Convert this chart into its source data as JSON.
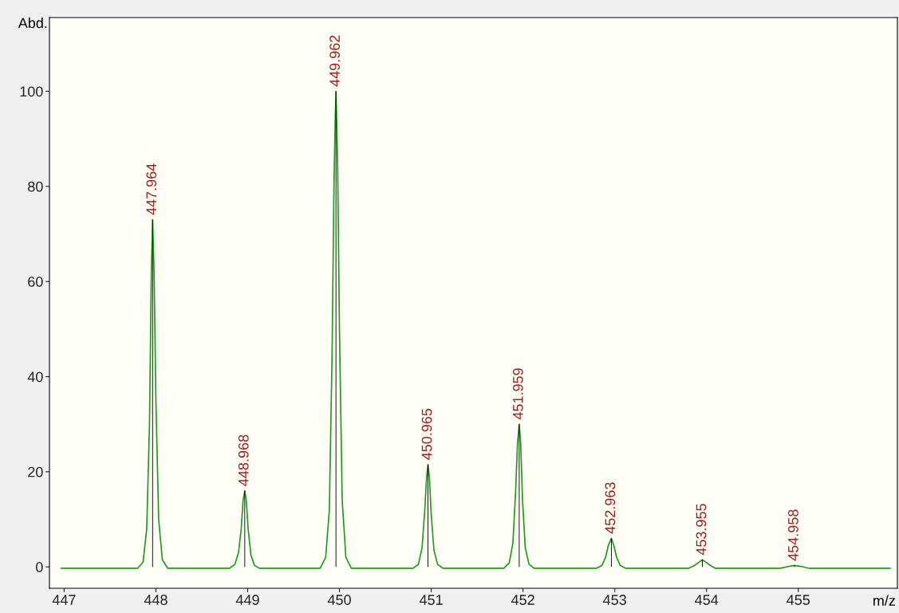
{
  "chart_data": {
    "type": "line",
    "ylabel": "Abd.",
    "xlabel": "m/z",
    "xlim": [
      446.84,
      456.08
    ],
    "ylim": [
      -4.5,
      115.5
    ],
    "xticks": [
      447,
      448,
      449,
      450,
      451,
      452,
      453,
      454,
      455
    ],
    "yticks": [
      0,
      20,
      40,
      60,
      80,
      100
    ],
    "grid": false,
    "legend": false,
    "series": [
      {
        "color": "#1e9a1e",
        "x": [
          446.97,
          447.8,
          447.86,
          447.9,
          447.93,
          447.95,
          447.964,
          447.98,
          448.0,
          448.03,
          448.07,
          448.13,
          448.8,
          448.86,
          448.9,
          448.93,
          448.95,
          448.968,
          448.985,
          449.005,
          449.035,
          449.075,
          449.13,
          449.79,
          449.85,
          449.89,
          449.92,
          449.94,
          449.955,
          449.962,
          449.98,
          450.0,
          450.03,
          450.07,
          450.13,
          450.8,
          450.86,
          450.9,
          450.93,
          450.95,
          450.965,
          450.98,
          451.0,
          451.03,
          451.07,
          451.13,
          451.79,
          451.85,
          451.89,
          451.92,
          451.94,
          451.959,
          451.975,
          451.995,
          452.025,
          452.065,
          452.12,
          452.8,
          452.86,
          452.9,
          452.93,
          452.963,
          452.99,
          453.02,
          453.06,
          453.12,
          453.8,
          453.86,
          453.92,
          453.955,
          453.99,
          454.05,
          454.1,
          454.8,
          454.9,
          454.958,
          455.03,
          455.12,
          456.0
        ],
        "values": [
          -0.3,
          -0.3,
          1,
          8,
          30,
          62,
          73,
          62,
          35,
          10,
          1.5,
          -0.3,
          -0.3,
          0.5,
          3,
          8,
          14,
          16,
          14,
          8,
          2.5,
          0.3,
          -0.3,
          -0.3,
          2,
          12,
          45,
          80,
          95,
          100,
          85,
          50,
          14,
          2,
          -0.3,
          -0.3,
          0.5,
          4,
          12,
          19,
          21.5,
          19,
          11,
          3.5,
          0.5,
          -0.3,
          -0.3,
          0.8,
          5,
          16,
          26,
          30,
          26,
          14,
          4,
          0.6,
          -0.3,
          -0.3,
          0.3,
          2,
          4.5,
          6,
          4.5,
          2,
          0.3,
          -0.3,
          -0.3,
          0.2,
          1,
          1.5,
          1,
          0.2,
          -0.3,
          -0.3,
          0.1,
          0.3,
          0.1,
          -0.3,
          -0.3
        ]
      },
      {
        "type": "bar",
        "color": "#000000",
        "x": [
          447.964,
          448.968,
          449.962,
          450.965,
          451.959,
          452.963,
          453.955,
          454.958
        ],
        "values": [
          73,
          16,
          100,
          21.5,
          30,
          6,
          1.5,
          0.3
        ]
      }
    ],
    "annotations": [
      {
        "text": "447.964",
        "x": 447.964,
        "y": 73
      },
      {
        "text": "448.968",
        "x": 448.968,
        "y": 16
      },
      {
        "text": "449.962",
        "x": 449.962,
        "y": 100
      },
      {
        "text": "450.965",
        "x": 450.965,
        "y": 21.5
      },
      {
        "text": "451.959",
        "x": 451.959,
        "y": 30
      },
      {
        "text": "452.963",
        "x": 452.963,
        "y": 6
      },
      {
        "text": "453.955",
        "x": 453.955,
        "y": 1.5
      },
      {
        "text": "454.958",
        "x": 454.958,
        "y": 0.3
      }
    ]
  }
}
